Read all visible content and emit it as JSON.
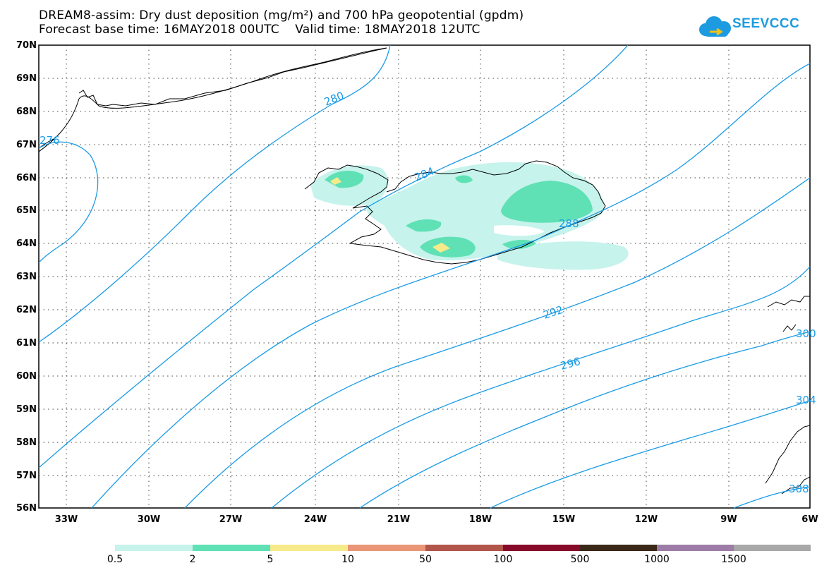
{
  "title_line1": "DREAM8-assim: Dry dust deposition (mg/m²) and 700 hPa geopotential (gpdm)",
  "title_line2": "Forecast base time: 16MAY2018 00UTC    Valid time: 18MAY2018 12UTC",
  "logo_text": "SEEVCCC",
  "lat_labels": [
    "70N",
    "69N",
    "68N",
    "67N",
    "66N",
    "65N",
    "64N",
    "63N",
    "62N",
    "61N",
    "60N",
    "59N",
    "58N",
    "57N",
    "56N"
  ],
  "lon_labels": [
    "33W",
    "30W",
    "27W",
    "24W",
    "21W",
    "18W",
    "15W",
    "12W",
    "9W",
    "6W"
  ],
  "contour_labels": [
    "280",
    "284",
    "288",
    "292",
    "296",
    "300",
    "304",
    "308",
    "276"
  ],
  "colorbar": {
    "labels": [
      "0.5",
      "2",
      "5",
      "10",
      "50",
      "100",
      "500",
      "1000",
      "1500"
    ],
    "colors": [
      "#c6f3ec",
      "#5fe1b5",
      "#f7ea8b",
      "#ea9676",
      "#b2564c",
      "#870a2a",
      "#3a2819",
      "#9d7ca7",
      "#a8a8a8"
    ]
  },
  "colors": {
    "contour": "#1a9be6",
    "dust_low": "#c6f3ec",
    "dust_mid": "#5fe1b5",
    "dust_high": "#f7ea8b"
  }
}
